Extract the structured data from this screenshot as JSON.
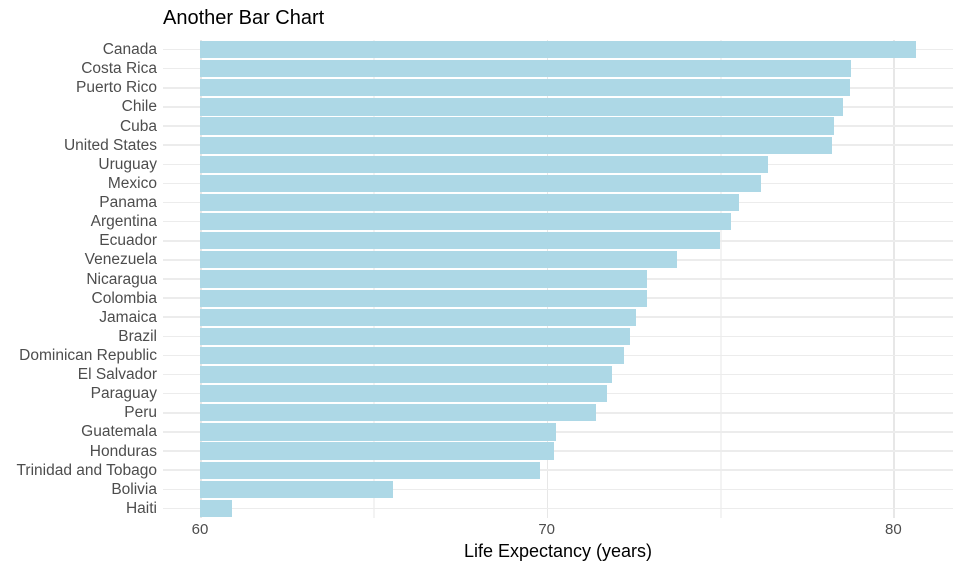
{
  "chart_data": {
    "type": "bar",
    "orientation": "horizontal",
    "title": "Another Bar Chart",
    "xlabel": "Life Expectancy (years)",
    "ylabel": "",
    "categories": [
      "Canada",
      "Costa Rica",
      "Puerto Rico",
      "Chile",
      "Cuba",
      "United States",
      "Uruguay",
      "Mexico",
      "Panama",
      "Argentina",
      "Ecuador",
      "Venezuela",
      "Nicaragua",
      "Colombia",
      "Jamaica",
      "Brazil",
      "Dominican Republic",
      "El Salvador",
      "Paraguay",
      "Peru",
      "Guatemala",
      "Honduras",
      "Trinidad and Tobago",
      "Bolivia",
      "Haiti"
    ],
    "values": [
      80.653,
      78.782,
      78.746,
      78.553,
      78.273,
      78.242,
      76.384,
      76.195,
      75.537,
      75.32,
      74.994,
      73.747,
      72.899,
      72.889,
      72.567,
      72.39,
      72.235,
      71.878,
      71.752,
      71.421,
      70.259,
      70.198,
      69.819,
      65.554,
      60.916
    ],
    "bar_baseline": 60,
    "xlim": [
      58.9,
      81.7
    ],
    "x_ticks": [
      60,
      70,
      80
    ],
    "x_tick_labels": [
      "60",
      "70",
      "80"
    ],
    "x_minor_gridlines": [
      65,
      75
    ],
    "grid": "on",
    "legend_position": "none",
    "colors": {
      "bar_fill": "#ADD8E6",
      "grid_major": "#E7E7E7",
      "grid_minor": "#F3F3F3",
      "grid_row": "#ECECEC",
      "axis_text": "#4D4D4D",
      "title_text": "#000000"
    }
  }
}
